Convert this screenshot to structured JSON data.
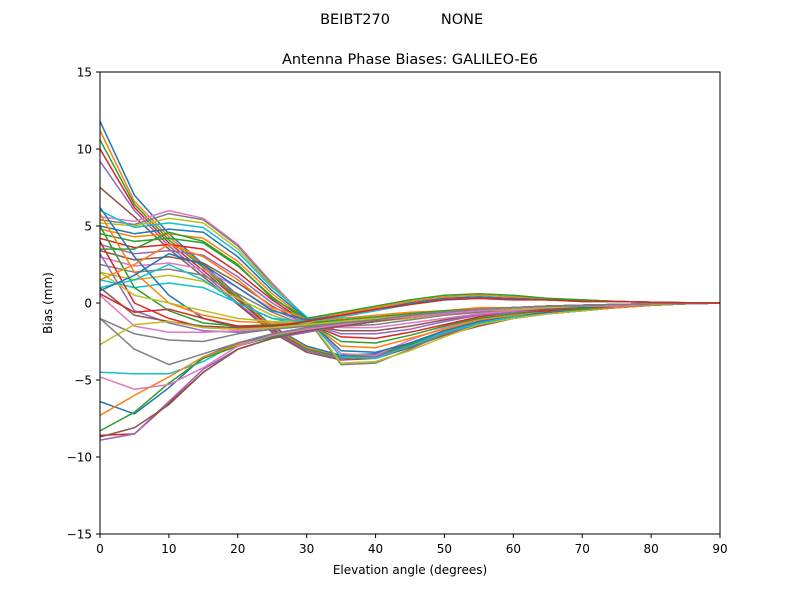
{
  "figure": {
    "suptitle_left": "BEIBT270",
    "suptitle_right": "NONE"
  },
  "chart_data": {
    "type": "line",
    "title": "Antenna Phase Biases: GALILEO-E6",
    "xlabel": "Elevation angle (degrees)",
    "ylabel": "Bias (mm)",
    "xlim": [
      0,
      90
    ],
    "ylim": [
      -15,
      15
    ],
    "xticks": [
      0,
      10,
      20,
      30,
      40,
      50,
      60,
      70,
      80,
      90
    ],
    "yticks": [
      -15,
      -10,
      -5,
      0,
      5,
      10,
      15
    ],
    "xtick_labels": [
      "0",
      "10",
      "20",
      "30",
      "40",
      "50",
      "60",
      "70",
      "80",
      "90"
    ],
    "ytick_labels": [
      "−15",
      "−10",
      "−5",
      "0",
      "5",
      "10",
      "15"
    ],
    "grid": false,
    "legend": "none",
    "colors": [
      "#1f77b4",
      "#ff7f0e",
      "#2ca02c",
      "#d62728",
      "#9467bd",
      "#8c564b",
      "#e377c2",
      "#7f7f7f",
      "#bcbd22",
      "#17becf"
    ],
    "x": [
      0,
      5,
      10,
      15,
      20,
      25,
      30,
      35,
      40,
      45,
      50,
      55,
      60,
      65,
      70,
      75,
      80,
      85,
      90
    ],
    "series": [
      {
        "values": [
          11.8,
          7.0,
          4.5,
          2.5,
          0.5,
          -1.5,
          -2.8,
          -3.4,
          -3.3,
          -2.6,
          -1.8,
          -1.2,
          -0.8,
          -0.6,
          -0.4,
          -0.3,
          -0.15,
          -0.05,
          0.0
        ]
      },
      {
        "values": [
          11.2,
          6.6,
          4.3,
          2.4,
          0.4,
          -1.6,
          -2.9,
          -3.5,
          -3.4,
          -2.7,
          -1.9,
          -1.3,
          -0.9,
          -0.6,
          -0.4,
          -0.3,
          -0.15,
          -0.05,
          0.0
        ]
      },
      {
        "values": [
          10.6,
          6.4,
          4.1,
          2.3,
          0.3,
          -1.7,
          -3.0,
          -3.5,
          -3.4,
          -2.7,
          -1.9,
          -1.3,
          -0.9,
          -0.6,
          -0.4,
          -0.3,
          -0.15,
          -0.05,
          0.0
        ]
      },
      {
        "values": [
          10.0,
          6.2,
          3.9,
          2.1,
          0.2,
          -1.7,
          -3.1,
          -3.6,
          -3.5,
          -2.8,
          -2.0,
          -1.4,
          -0.9,
          -0.7,
          -0.5,
          -0.3,
          -0.15,
          -0.05,
          0.0
        ]
      },
      {
        "values": [
          9.2,
          6.0,
          3.7,
          1.9,
          0.0,
          -1.8,
          -3.1,
          -3.6,
          -3.5,
          -2.8,
          -2.0,
          -1.4,
          -1.0,
          -0.7,
          -0.5,
          -0.3,
          -0.15,
          -0.05,
          0.0
        ]
      },
      {
        "values": [
          7.5,
          5.6,
          3.5,
          1.7,
          -0.1,
          -1.9,
          -3.2,
          -3.7,
          -3.6,
          -2.9,
          -2.1,
          -1.5,
          -1.0,
          -0.7,
          -0.5,
          -0.3,
          -0.15,
          -0.05,
          0.0
        ]
      },
      {
        "values": [
          5.6,
          5.3,
          6.0,
          5.5,
          3.8,
          1.3,
          -1.0,
          -3.3,
          -3.4,
          -2.4,
          -1.6,
          -1.1,
          -0.8,
          -0.6,
          -0.4,
          -0.3,
          -0.15,
          -0.05,
          0.0
        ]
      },
      {
        "values": [
          5.4,
          5.1,
          5.8,
          5.4,
          3.7,
          1.2,
          -1.0,
          -4.0,
          -3.9,
          -3.0,
          -2.0,
          -1.3,
          -0.9,
          -0.6,
          -0.4,
          -0.3,
          -0.15,
          -0.05,
          0.0
        ]
      },
      {
        "values": [
          5.2,
          5.0,
          5.5,
          5.2,
          3.5,
          1.1,
          -0.9,
          -3.9,
          -3.8,
          -3.1,
          -2.2,
          -1.4,
          -1.0,
          -0.7,
          -0.5,
          -0.3,
          -0.15,
          -0.05,
          0.0
        ]
      },
      {
        "values": [
          6.0,
          4.9,
          5.2,
          4.9,
          3.3,
          1.0,
          -0.9,
          -3.5,
          -3.6,
          -2.8,
          -1.9,
          -1.3,
          -0.9,
          -0.6,
          -0.4,
          -0.3,
          -0.15,
          -0.05,
          0.0
        ]
      },
      {
        "values": [
          5.0,
          4.5,
          4.8,
          4.6,
          3.0,
          0.8,
          -1.0,
          -3.1,
          -3.2,
          -2.6,
          -1.8,
          -1.2,
          -0.8,
          -0.6,
          -0.4,
          -0.3,
          -0.15,
          -0.05,
          0.0
        ]
      },
      {
        "values": [
          4.8,
          4.3,
          4.5,
          4.2,
          2.7,
          0.6,
          -1.1,
          -2.8,
          -2.9,
          -2.3,
          -1.7,
          -1.1,
          -0.8,
          -0.5,
          -0.4,
          -0.3,
          -0.15,
          -0.05,
          0.0
        ]
      },
      {
        "values": [
          4.5,
          4.0,
          4.2,
          3.9,
          2.4,
          0.4,
          -1.2,
          -2.5,
          -2.6,
          -2.1,
          -1.5,
          -1.0,
          -0.7,
          -0.5,
          -0.4,
          -0.2,
          -0.1,
          -0.05,
          0.0
        ]
      },
      {
        "values": [
          4.2,
          3.6,
          3.8,
          3.5,
          2.0,
          0.2,
          -1.3,
          -2.2,
          -2.3,
          -1.9,
          -1.4,
          -0.9,
          -0.6,
          -0.5,
          -0.3,
          -0.2,
          -0.1,
          -0.05,
          0.0
        ]
      },
      {
        "values": [
          3.8,
          3.2,
          3.4,
          3.1,
          1.7,
          0.0,
          -1.3,
          -2.0,
          -2.0,
          -1.7,
          -1.2,
          -0.8,
          -0.6,
          -0.4,
          -0.3,
          -0.2,
          -0.1,
          -0.05,
          0.0
        ]
      },
      {
        "values": [
          3.4,
          2.8,
          3.0,
          2.6,
          1.3,
          -0.2,
          -1.4,
          -1.8,
          -1.8,
          -1.5,
          -1.1,
          -0.7,
          -0.5,
          -0.4,
          -0.3,
          -0.2,
          -0.1,
          -0.05,
          0.0
        ]
      },
      {
        "values": [
          3.0,
          2.4,
          2.6,
          2.2,
          1.0,
          -0.4,
          -1.4,
          -1.6,
          -1.6,
          -1.3,
          -1.0,
          -0.7,
          -0.5,
          -0.3,
          -0.2,
          -0.2,
          -0.1,
          -0.05,
          0.0
        ]
      },
      {
        "values": [
          2.5,
          2.0,
          2.2,
          1.8,
          0.6,
          -0.6,
          -1.5,
          -1.5,
          -1.4,
          -1.1,
          -0.8,
          -0.6,
          -0.4,
          -0.3,
          -0.2,
          -0.1,
          -0.1,
          -0.05,
          0.0
        ]
      },
      {
        "values": [
          2.0,
          1.5,
          1.8,
          1.4,
          0.3,
          -0.8,
          -1.5,
          -1.3,
          -1.2,
          -1.0,
          -0.7,
          -0.5,
          -0.4,
          -0.3,
          -0.2,
          -0.1,
          -0.1,
          -0.05,
          0.0
        ]
      },
      {
        "values": [
          1.5,
          1.0,
          1.3,
          1.0,
          0.0,
          -1.0,
          -1.5,
          -1.2,
          -1.0,
          -0.8,
          -0.6,
          -0.4,
          -0.3,
          -0.2,
          -0.2,
          -0.1,
          -0.05,
          -0.05,
          0.0
        ]
      },
      {
        "values": [
          6.2,
          3.0,
          0.5,
          -1.0,
          -1.6,
          -1.5,
          -1.3,
          -1.2,
          -1.1,
          -0.8,
          -0.6,
          -0.4,
          -0.3,
          -0.2,
          -0.15,
          -0.1,
          -0.05,
          -0.05,
          0.0
        ]
      },
      {
        "values": [
          5.8,
          2.0,
          0.0,
          -0.8,
          -1.2,
          -1.3,
          -1.2,
          -1.0,
          -0.8,
          -0.6,
          -0.5,
          -0.3,
          -0.3,
          -0.2,
          -0.15,
          -0.1,
          -0.05,
          -0.05,
          0.0
        ]
      },
      {
        "values": [
          5.0,
          1.0,
          -0.5,
          -1.3,
          -1.5,
          -1.4,
          -1.3,
          -1.1,
          -0.9,
          -0.7,
          -0.5,
          -0.4,
          -0.3,
          -0.2,
          -0.15,
          -0.1,
          -0.05,
          -0.05,
          0.0
        ]
      },
      {
        "values": [
          4.0,
          0.0,
          -1.0,
          -1.6,
          -1.7,
          -1.5,
          -1.4,
          -1.2,
          -1.0,
          -0.8,
          -0.6,
          -0.4,
          -0.3,
          -0.2,
          -0.15,
          -0.1,
          -0.05,
          -0.05,
          0.0
        ]
      },
      {
        "values": [
          3.2,
          -0.5,
          -1.3,
          -1.8,
          -1.9,
          -1.7,
          -1.5,
          -1.2,
          -1.0,
          -0.8,
          -0.6,
          -0.4,
          -0.3,
          -0.2,
          -0.15,
          -0.1,
          -0.05,
          -0.05,
          0.0
        ]
      },
      {
        "values": [
          1.0,
          -0.8,
          -1.2,
          -1.5,
          -1.6,
          -1.5,
          -1.4,
          -1.2,
          -1.0,
          -0.8,
          -0.6,
          -0.4,
          -0.3,
          -0.2,
          -0.15,
          -0.1,
          -0.05,
          -0.05,
          0.0
        ]
      },
      {
        "values": [
          0.5,
          -1.5,
          -1.9,
          -1.9,
          -1.8,
          -1.6,
          -1.4,
          -1.2,
          -1.0,
          -0.8,
          -0.6,
          -0.4,
          -0.3,
          -0.2,
          -0.15,
          -0.1,
          -0.05,
          -0.05,
          0.0
        ]
      },
      {
        "values": [
          -1.0,
          -2.0,
          -2.4,
          -2.5,
          -2.0,
          -1.7,
          -1.5,
          -1.2,
          -1.0,
          -0.8,
          -0.6,
          -0.4,
          -0.3,
          -0.2,
          -0.15,
          -0.1,
          -0.05,
          -0.05,
          0.0
        ]
      },
      {
        "values": [
          -2.7,
          -1.4,
          -1.2,
          -1.6,
          -1.7,
          -1.6,
          -1.4,
          -1.2,
          -1.0,
          -0.8,
          -0.6,
          -0.4,
          -0.3,
          -0.2,
          -0.15,
          -0.1,
          -0.05,
          -0.05,
          0.0
        ]
      },
      {
        "values": [
          -4.5,
          -4.6,
          -4.6,
          -3.8,
          -2.6,
          -2.0,
          -1.6,
          -1.3,
          -1.1,
          -0.9,
          -0.7,
          -0.5,
          -0.3,
          -0.2,
          -0.15,
          -0.1,
          -0.05,
          -0.05,
          0.0
        ]
      },
      {
        "values": [
          -6.4,
          -7.2,
          -5.5,
          -3.5,
          -2.6,
          -2.1,
          -1.7,
          -1.4,
          -1.2,
          -0.9,
          -0.7,
          -0.5,
          -0.3,
          -0.2,
          -0.15,
          -0.1,
          -0.05,
          -0.05,
          0.0
        ]
      },
      {
        "values": [
          -7.3,
          -6.0,
          -4.8,
          -3.5,
          -2.7,
          -2.2,
          -1.8,
          -1.5,
          -1.2,
          -0.9,
          -0.7,
          -0.5,
          -0.3,
          -0.2,
          -0.15,
          -0.1,
          -0.05,
          -0.05,
          0.0
        ]
      },
      {
        "values": [
          -8.3,
          -7.1,
          -5.2,
          -3.6,
          -2.8,
          -2.2,
          -1.8,
          -1.5,
          -1.2,
          -0.9,
          -0.7,
          -0.5,
          -0.3,
          -0.2,
          -0.15,
          -0.1,
          -0.05,
          -0.05,
          0.0
        ]
      },
      {
        "values": [
          -8.6,
          -8.5,
          -6.5,
          -4.5,
          -3.0,
          -2.3,
          -1.9,
          -1.5,
          -1.2,
          -0.9,
          -0.7,
          -0.5,
          -0.3,
          -0.2,
          -0.15,
          -0.1,
          -0.05,
          -0.05,
          0.0
        ]
      },
      {
        "values": [
          -8.9,
          -8.5,
          -6.4,
          -4.3,
          -3.0,
          -2.3,
          -1.9,
          -1.5,
          -1.2,
          -0.9,
          -0.7,
          -0.5,
          -0.3,
          -0.2,
          -0.15,
          -0.1,
          -0.05,
          -0.05,
          0.0
        ]
      },
      {
        "values": [
          -8.7,
          -8.1,
          -6.6,
          -4.5,
          -3.0,
          -2.3,
          -1.8,
          -1.5,
          -1.2,
          -0.9,
          -0.7,
          -0.5,
          -0.3,
          -0.2,
          -0.15,
          -0.1,
          -0.05,
          -0.05,
          0.0
        ]
      },
      {
        "values": [
          -4.8,
          -5.6,
          -5.3,
          -4.2,
          -2.8,
          -2.1,
          -1.7,
          -1.4,
          -1.1,
          -0.9,
          -0.7,
          -0.5,
          -0.3,
          -0.2,
          -0.15,
          -0.1,
          -0.05,
          -0.05,
          0.0
        ]
      },
      {
        "values": [
          -1.0,
          -3.0,
          -4.0,
          -3.3,
          -2.6,
          -2.0,
          -1.6,
          -1.3,
          -1.1,
          -0.8,
          -0.6,
          -0.4,
          -0.3,
          -0.2,
          -0.15,
          -0.1,
          -0.05,
          -0.05,
          0.0
        ]
      },
      {
        "values": [
          2.0,
          0.5,
          0.0,
          -0.5,
          -1.0,
          -1.2,
          -1.3,
          -0.8,
          -0.3,
          0.1,
          0.3,
          0.3,
          0.3,
          0.2,
          0.1,
          0.1,
          0.05,
          0.02,
          0.0
        ]
      },
      {
        "values": [
          1.0,
          1.5,
          2.5,
          1.5,
          0.0,
          -1.0,
          -1.2,
          -0.9,
          -0.5,
          -0.1,
          0.2,
          0.3,
          0.3,
          0.2,
          0.1,
          0.1,
          0.05,
          0.02,
          0.0
        ]
      },
      {
        "values": [
          0.8,
          1.8,
          3.2,
          2.5,
          1.0,
          -0.5,
          -1.1,
          -0.8,
          -0.4,
          0.0,
          0.3,
          0.4,
          0.3,
          0.2,
          0.2,
          0.1,
          0.05,
          0.02,
          0.0
        ]
      },
      {
        "values": [
          1.5,
          2.5,
          3.8,
          3.0,
          1.5,
          -0.3,
          -1.0,
          -0.7,
          -0.3,
          0.1,
          0.4,
          0.5,
          0.4,
          0.3,
          0.2,
          0.1,
          0.05,
          0.02,
          0.0
        ]
      },
      {
        "values": [
          3.5,
          3.5,
          4.6,
          4.0,
          2.5,
          0.3,
          -1.0,
          -0.6,
          -0.2,
          0.2,
          0.5,
          0.6,
          0.5,
          0.3,
          0.2,
          0.1,
          0.05,
          0.02,
          0.0
        ]
      },
      {
        "values": [
          0.6,
          -0.6,
          -0.4,
          -1.0,
          -1.5,
          -1.5,
          -1.2,
          -0.8,
          -0.4,
          -0.1,
          0.2,
          0.3,
          0.2,
          0.2,
          0.1,
          0.1,
          0.05,
          0.02,
          0.0
        ]
      }
    ]
  }
}
